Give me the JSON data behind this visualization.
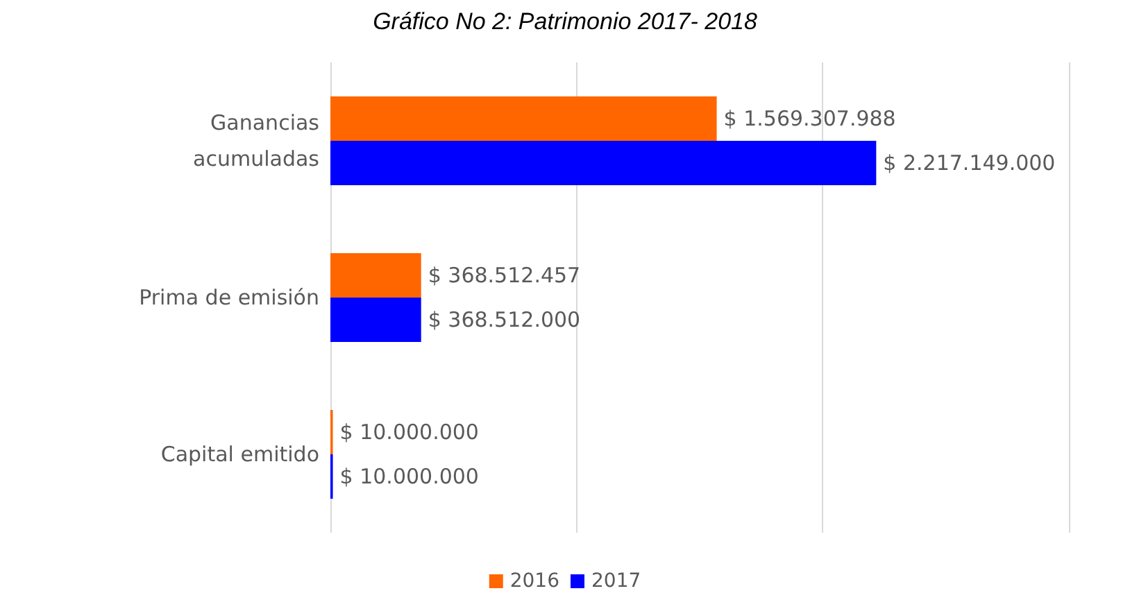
{
  "chart_data": {
    "type": "bar",
    "orientation": "horizontal",
    "title": "Gráfico No 2: Patrimonio 2017- 2018",
    "categories": [
      "Ganancias acumuladas",
      "Prima de emisión",
      "Capital emitido"
    ],
    "series": [
      {
        "name": "2016",
        "color": "#ff6600",
        "values": [
          1569307988,
          368512457,
          10000000
        ],
        "value_labels": [
          "$ 1.569.307.988",
          "$ 368.512.457",
          "$ 10.000.000"
        ]
      },
      {
        "name": "2017",
        "color": "#0000ff",
        "values": [
          2217149000,
          368512000,
          10000000
        ],
        "value_labels": [
          "$ 2.217.149.000",
          "$ 368.512.000",
          "$ 10.000.000"
        ]
      }
    ],
    "xlim": [
      0,
      3000000000
    ],
    "xticks": [
      {
        "value": 0,
        "label": null
      },
      {
        "value": 1000000000,
        "label": null
      },
      {
        "value": 2000000000,
        "label": null
      },
      {
        "value": 3000000000,
        "label": null
      }
    ],
    "grid": "x",
    "legend": "bottom",
    "tick_labels": "y"
  }
}
